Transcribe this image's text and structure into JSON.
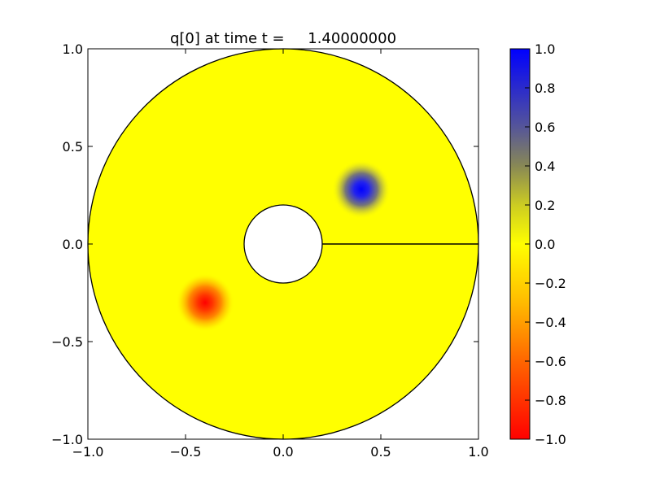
{
  "chart_data": {
    "type": "heatmap",
    "title": "q[0] at time t =     1.40000000",
    "xlabel": "",
    "ylabel": "",
    "xlim": [
      -1.0,
      1.0
    ],
    "ylim": [
      -1.0,
      1.0
    ],
    "x_ticks": [
      -1.0,
      -0.5,
      0.0,
      0.5,
      1.0
    ],
    "y_ticks": [
      -1.0,
      -0.5,
      0.0,
      0.5,
      1.0
    ],
    "x_tick_labels": [
      "−1.0",
      "−0.5",
      "0.0",
      "0.5",
      "1.0"
    ],
    "y_tick_labels": [
      "−1.0",
      "−0.5",
      "0.0",
      "0.5",
      "1.0"
    ],
    "grid": false,
    "domain": {
      "shape": "annulus",
      "outer_radius": 1.0,
      "inner_radius": 0.2,
      "cut_line": {
        "from": [
          0.2,
          0.0
        ],
        "to": [
          1.0,
          0.0
        ]
      }
    },
    "blobs": [
      {
        "center": [
          0.4,
          0.28
        ],
        "value": 1.0,
        "width": 0.12
      },
      {
        "center": [
          -0.4,
          -0.3
        ],
        "value": -1.0,
        "width": 0.12
      }
    ],
    "colorbar": {
      "range": [
        -1.0,
        1.0
      ],
      "ticks": [
        -1.0,
        -0.8,
        -0.6,
        -0.4,
        -0.2,
        0.0,
        0.2,
        0.4,
        0.6,
        0.8,
        1.0
      ],
      "tick_labels": [
        "−1.0",
        "−0.8",
        "−0.6",
        "−0.4",
        "−0.2",
        "0.0",
        "0.2",
        "0.4",
        "0.6",
        "0.8",
        "1.0"
      ],
      "colormap": [
        {
          "value": -1.0,
          "color": "#ff0000"
        },
        {
          "value": -0.6,
          "color": "#ff6600"
        },
        {
          "value": -0.3,
          "color": "#ffbb00"
        },
        {
          "value": 0.0,
          "color": "#ffff00"
        },
        {
          "value": 0.2,
          "color": "#cccc22"
        },
        {
          "value": 0.4,
          "color": "#888855"
        },
        {
          "value": 0.6,
          "color": "#555599"
        },
        {
          "value": 1.0,
          "color": "#0000ff"
        }
      ]
    }
  }
}
